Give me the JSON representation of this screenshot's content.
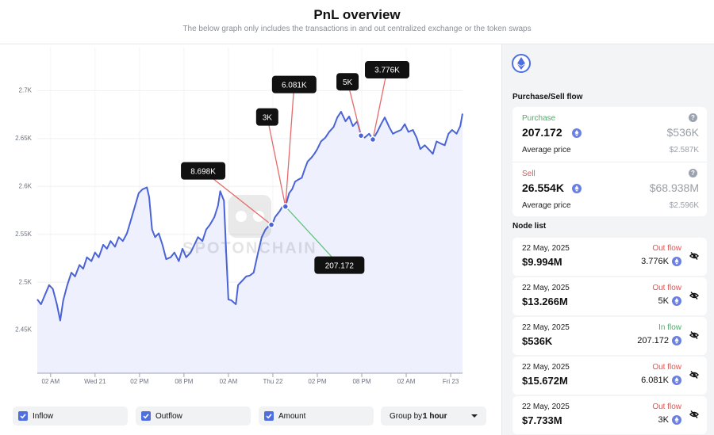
{
  "header": {
    "title": "PnL overview",
    "subtitle": "The below graph only includes the transactions in and out centralized exchange or the token swaps"
  },
  "chart_data": {
    "type": "line",
    "color": "#4a63d6",
    "fill": "#eef1fd",
    "grid": true,
    "watermark": "SPOTONCHAIN",
    "x": [
      -1.8,
      -1.3,
      -0.75,
      -0.2,
      0.3,
      0.85,
      1.3,
      1.7,
      2.25,
      2.8,
      3.3,
      3.9,
      4.4,
      4.9,
      5.5,
      6,
      6.5,
      7.1,
      7.6,
      8.1,
      8.7,
      9.2,
      9.75,
      10.3,
      10.8,
      11.4,
      11.9,
      12.4,
      13,
      13.3,
      13.7,
      14.1,
      14.6,
      15.1,
      15.6,
      16.2,
      16.7,
      17.3,
      17.8,
      18.3,
      18.9,
      19.4,
      19.9,
      20.5,
      21,
      21.5,
      22.1,
      22.6,
      22.9,
      23.4,
      23.7,
      24,
      24.4,
      25,
      25.3,
      25.8,
      26.4,
      26.9,
      27.4,
      28,
      28.5,
      29,
      29.6,
      29.9,
      30.3,
      30.9,
      31.3,
      31.7,
      32.2,
      32.6,
      33,
      33.4,
      33.9,
      34.3,
      34.7,
      35.2,
      35.6,
      36,
      36.5,
      37.1,
      37.6,
      38.2,
      38.7,
      39.2,
      39.8,
      40.3,
      40.8,
      41.4,
      41.9,
      42.4,
      43,
      43.5,
      44.1,
      44.6,
      45.1,
      45.7,
      46.2,
      46.7,
      47.3,
      47.8,
      48.3,
      48.9,
      49.4,
      49.9,
      50.5,
      51,
      51.6,
      52.1,
      52.6,
      53.2,
      53.7,
      54.2,
      54.8,
      55.3,
      55.6
    ],
    "values": [
      2482,
      2477,
      2487,
      2497,
      2493,
      2477,
      2460,
      2481,
      2497,
      2510,
      2506,
      2518,
      2514,
      2526,
      2522,
      2531,
      2526,
      2539,
      2535,
      2543,
      2537,
      2547,
      2543,
      2551,
      2564,
      2580,
      2593,
      2597,
      2599,
      2589,
      2555,
      2547,
      2551,
      2539,
      2524,
      2526,
      2531,
      2522,
      2535,
      2526,
      2531,
      2539,
      2547,
      2543,
      2555,
      2560,
      2568,
      2580,
      2595,
      2585,
      2531,
      2482,
      2481,
      2477,
      2497,
      2501,
      2506,
      2507,
      2510,
      2531,
      2547,
      2555,
      2560,
      2560,
      2568,
      2574,
      2579,
      2579,
      2593,
      2597,
      2605,
      2607,
      2609,
      2618,
      2626,
      2630,
      2634,
      2639,
      2647,
      2651,
      2657,
      2662,
      2672,
      2678,
      2668,
      2673,
      2663,
      2668,
      2653,
      2651,
      2655,
      2649,
      2657,
      2665,
      2672,
      2662,
      2655,
      2657,
      2659,
      2665,
      2657,
      2659,
      2651,
      2639,
      2643,
      2639,
      2634,
      2647,
      2645,
      2643,
      2655,
      2659,
      2655,
      2663,
      2676
    ],
    "xlim": [
      -1.8,
      55.6
    ],
    "xticks": [
      {
        "value": 0,
        "label": "02 AM"
      },
      {
        "value": 6,
        "label": "Wed 21"
      },
      {
        "value": 12,
        "label": "02 PM"
      },
      {
        "value": 18,
        "label": "08 PM"
      },
      {
        "value": 24,
        "label": "02 AM"
      },
      {
        "value": 30,
        "label": "Thu 22"
      },
      {
        "value": 36,
        "label": "02 PM"
      },
      {
        "value": 42,
        "label": "08 PM"
      },
      {
        "value": 48,
        "label": "02 AM"
      },
      {
        "value": 54,
        "label": "Fri 23"
      }
    ],
    "ylim": [
      2405,
      2745
    ],
    "yticks": [
      {
        "value": 2450,
        "label": "2.45K"
      },
      {
        "value": 2500,
        "label": "2.5K"
      },
      {
        "value": 2550,
        "label": "2.55K"
      },
      {
        "value": 2600,
        "label": "2.6K"
      },
      {
        "value": 2650,
        "label": "2.65K"
      },
      {
        "value": 2700,
        "label": "2.7K"
      }
    ],
    "annotations": [
      {
        "text": "8.698K",
        "x": 29.8,
        "y": 2560,
        "color": "#e66a6a"
      },
      {
        "text": "3K",
        "x": 31.7,
        "y": 2579,
        "color": "#e66a6a"
      },
      {
        "text": "6.081K",
        "x": 31.7,
        "y": 2579,
        "color": "#e66a6a"
      },
      {
        "text": "207.172",
        "x": 31.7,
        "y": 2579,
        "color": "#5fc27a"
      },
      {
        "text": "5K",
        "x": 41.9,
        "y": 2653,
        "color": "#e66a6a"
      },
      {
        "text": "3.776K",
        "x": 43.5,
        "y": 2649,
        "color": "#e66a6a"
      }
    ]
  },
  "controls": {
    "checkboxes": [
      "Inflow",
      "Outflow",
      "Amount"
    ],
    "group_label": "Group by:",
    "group_value": "1 hour"
  },
  "sidebar": {
    "flow_title": "Purchase/Sell flow",
    "purchase": {
      "label": "Purchase",
      "amount": "207.172",
      "usd": "$536K",
      "avg_label": "Average price",
      "avg": "$2.587K",
      "color": "#4caf6a"
    },
    "sell": {
      "label": "Sell",
      "amount": "26.554K",
      "usd": "$68.938M",
      "avg_label": "Average price",
      "avg": "$2.596K",
      "color": "#e05555"
    },
    "node_title": "Node list",
    "nodes": [
      {
        "date": "22 May, 2025",
        "usd": "$9.994M",
        "flow": "Out flow",
        "amount": "3.776K",
        "color": "#e05555"
      },
      {
        "date": "22 May, 2025",
        "usd": "$13.266M",
        "flow": "Out flow",
        "amount": "5K",
        "color": "#e05555"
      },
      {
        "date": "22 May, 2025",
        "usd": "$536K",
        "flow": "In flow",
        "amount": "207.172",
        "color": "#4caf6a"
      },
      {
        "date": "22 May, 2025",
        "usd": "$15.672M",
        "flow": "Out flow",
        "amount": "6.081K",
        "color": "#e05555"
      },
      {
        "date": "22 May, 2025",
        "usd": "$7.733M",
        "flow": "Out flow",
        "amount": "3K",
        "color": "#e05555"
      }
    ]
  }
}
